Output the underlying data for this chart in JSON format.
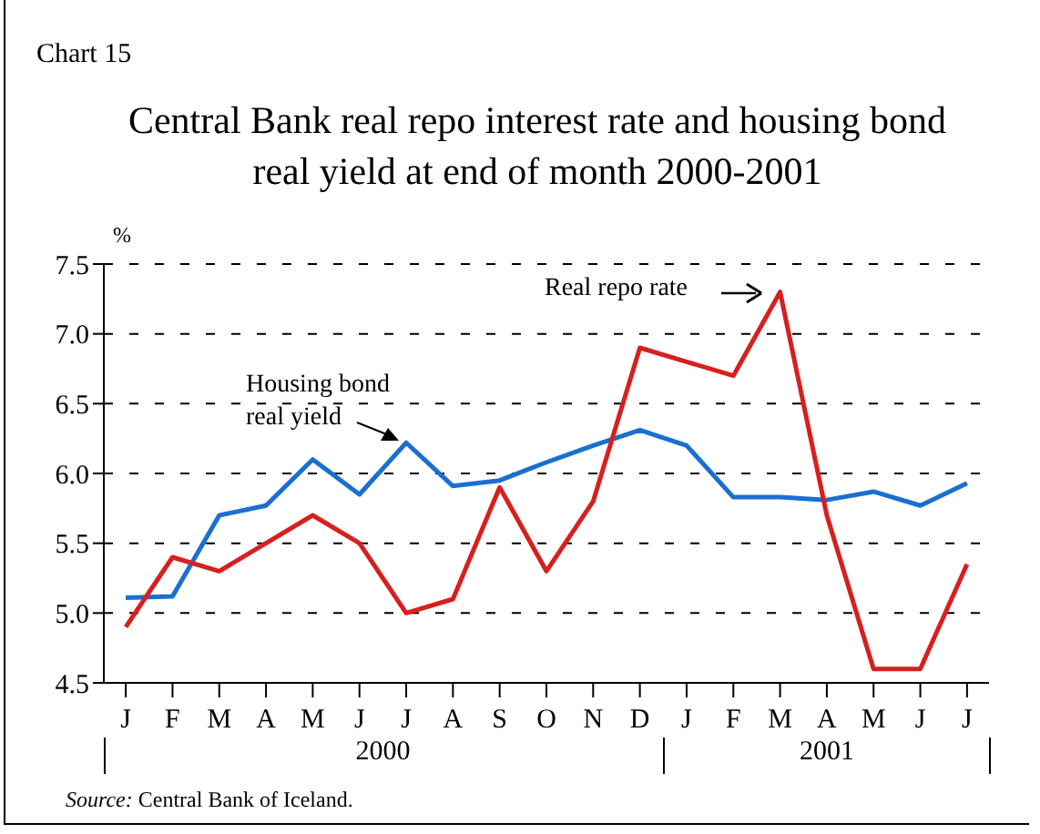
{
  "chart_data": {
    "type": "line",
    "title": "Central Bank real repo interest rate and housing bond real yield at end of month 2000-2001",
    "ylabel": "%",
    "categories": [
      "J",
      "F",
      "M",
      "A",
      "M",
      "J",
      "J",
      "A",
      "S",
      "O",
      "N",
      "D",
      "J",
      "F",
      "M",
      "A",
      "M",
      "J",
      "J"
    ],
    "series": [
      {
        "name": "Housing bond real yield",
        "color": "#1a6fd0",
        "values": [
          5.11,
          5.12,
          5.7,
          5.77,
          6.1,
          5.85,
          6.22,
          5.91,
          5.95,
          6.08,
          6.2,
          6.31,
          6.2,
          5.83,
          5.83,
          5.81,
          5.87,
          5.77,
          5.93
        ]
      },
      {
        "name": "Real repo rate",
        "color": "#d7201e",
        "values": [
          4.9,
          5.4,
          5.3,
          5.5,
          5.7,
          5.5,
          5.0,
          5.1,
          5.9,
          5.3,
          5.8,
          6.9,
          6.8,
          6.7,
          7.3,
          5.7,
          4.6,
          4.6,
          5.35
        ]
      }
    ],
    "ylim": [
      4.5,
      7.5
    ],
    "yticks": [
      {
        "value": 4.5,
        "label": "4.5"
      },
      {
        "value": 5,
        "label": "5.0"
      },
      {
        "value": 5.5,
        "label": "5.5"
      },
      {
        "value": 6,
        "label": "6.0"
      },
      {
        "value": 6.5,
        "label": "6.5"
      },
      {
        "value": 7,
        "label": "7.0"
      },
      {
        "value": 7.5,
        "label": "7.5"
      }
    ],
    "grid": "y",
    "legend": false,
    "marker": "none",
    "line_style": "solid",
    "annotations": [
      "Chart 15",
      "2000",
      "2001",
      "Source: Central Bank of Iceland."
    ]
  }
}
